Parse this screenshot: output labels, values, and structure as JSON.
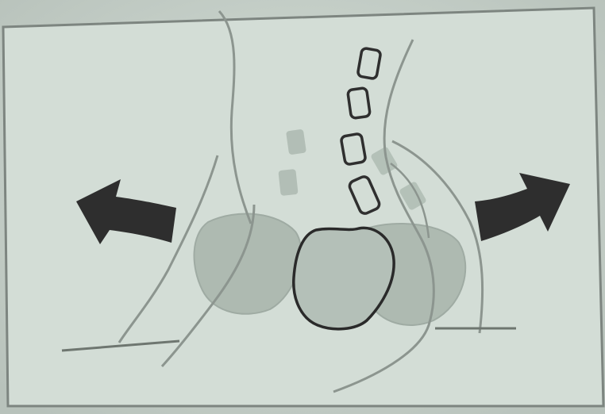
{
  "figure": {
    "colors": {
      "page_background": "#c9d3cc",
      "panel_fill": "#d3ddd6",
      "panel_border": "#7d8580",
      "faded_fill": "#aab7ae",
      "faded_line": "#8c958f",
      "dark_outline": "#2f2f2f",
      "arrow_fill": "#2e2e2e"
    },
    "icons": {
      "left_arrow": "arrow-left-icon",
      "right_arrow": "arrow-right-icon"
    }
  }
}
